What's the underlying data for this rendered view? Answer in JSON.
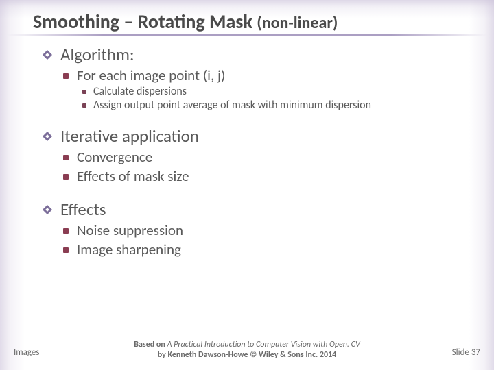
{
  "title": {
    "main": "Smoothing – Rotating Mask",
    "sub": "(non-linear)",
    "title_color": "#4a4a4a",
    "main_fontsize": 28,
    "sub_fontsize": 24,
    "underline_color": "#9687b4"
  },
  "body_text_color": "#595959",
  "bullets": {
    "lvl1_marker_color": "#7c6e9a",
    "lvl2_marker_color": "#8a3d52",
    "lvl3_marker_color": "#7a4256",
    "lvl1_fontsize": 25,
    "lvl2_fontsize": 21,
    "lvl3_fontsize": 16
  },
  "content": [
    {
      "level": 1,
      "text": "Algorithm:"
    },
    {
      "level": 2,
      "text": "For each image point (i, j)"
    },
    {
      "level": 3,
      "text": "Calculate dispersions"
    },
    {
      "level": 3,
      "text": "Assign output point average of mask with minimum dispersion"
    },
    {
      "spacer": true
    },
    {
      "level": 1,
      "text": "Iterative application"
    },
    {
      "level": 2,
      "text": "Convergence"
    },
    {
      "level": 2,
      "text": "Effects of mask size"
    },
    {
      "spacer": true
    },
    {
      "level": 1,
      "text": "Effects"
    },
    {
      "level": 2,
      "text": "Noise suppression"
    },
    {
      "level": 2,
      "text": "Image sharpening"
    }
  ],
  "footer": {
    "left": "Images",
    "center_prefix": "Based on",
    "center_book": "A Practical Introduction to Computer Vision with Open. CV",
    "center_by": "by Kenneth Dawson-Howe © Wiley & Sons Inc. 2014",
    "right": "Slide 37",
    "fontsize": 13,
    "center_fontsize": 12,
    "color": "#6b6b6b"
  },
  "background": {
    "edge_tint": "#c8bed7",
    "base": "#ffffff"
  }
}
